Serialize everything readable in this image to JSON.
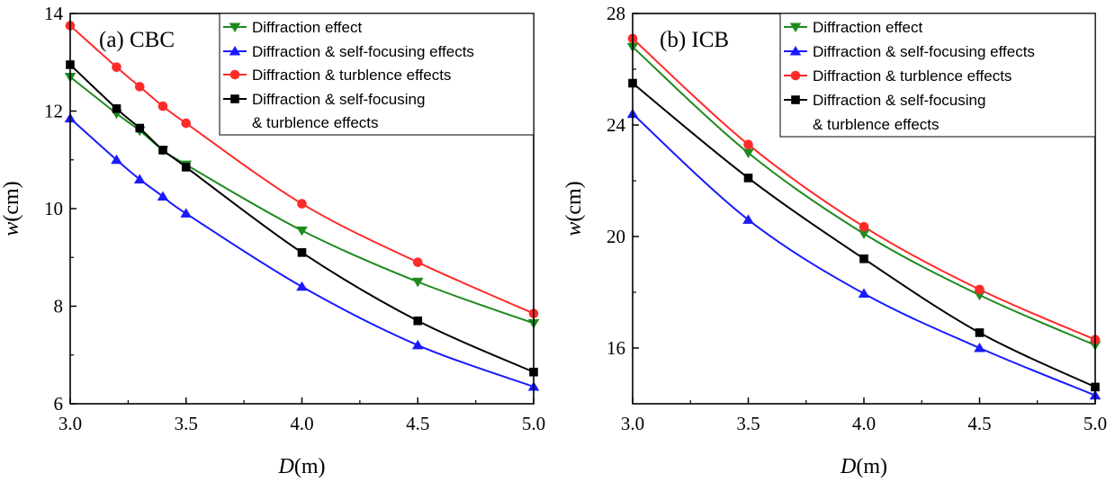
{
  "chart_data": [
    {
      "type": "line",
      "title": "(a) CBC",
      "xlabel_italic": "D",
      "xlabel_unit": "(m)",
      "ylabel_italic": "w",
      "ylabel_unit": "(cm)",
      "xlim": [
        3.0,
        5.0
      ],
      "ylim": [
        6,
        14
      ],
      "xticks": [
        3.0,
        3.5,
        4.0,
        4.5,
        5.0
      ],
      "xtick_labels": [
        "3.0",
        "3.5",
        "4.0",
        "4.5",
        "5.0"
      ],
      "yticks": [
        6,
        8,
        10,
        12,
        14
      ],
      "ytick_labels": [
        "6",
        "8",
        "10",
        "12",
        "14"
      ],
      "legend_position": "top-right",
      "grid": false,
      "series": [
        {
          "name": "Diffraction effect",
          "color": "#1f8a1f",
          "marker": "triangle-down",
          "x": [
            3.0,
            3.2,
            3.3,
            3.4,
            3.5,
            4.0,
            4.5,
            5.0
          ],
          "y": [
            12.7,
            11.95,
            11.6,
            11.2,
            10.9,
            9.55,
            8.5,
            7.65
          ]
        },
        {
          "name": "Diffraction & self-focusing effects",
          "color": "#1a1aff",
          "marker": "triangle-up",
          "x": [
            3.0,
            3.2,
            3.3,
            3.4,
            3.5,
            4.0,
            4.5,
            5.0
          ],
          "y": [
            11.85,
            11.0,
            10.6,
            10.25,
            9.9,
            8.4,
            7.2,
            6.35
          ]
        },
        {
          "name": "Diffraction & turblence effects",
          "color": "#ff2a2a",
          "marker": "circle",
          "x": [
            3.0,
            3.2,
            3.3,
            3.4,
            3.5,
            4.0,
            4.5,
            5.0
          ],
          "y": [
            13.75,
            12.9,
            12.5,
            12.1,
            11.75,
            10.1,
            8.9,
            7.85
          ]
        },
        {
          "name": "Diffraction & self-focusing & turblence effects",
          "color": "#000000",
          "marker": "square",
          "legend_lines": [
            "Diffraction & self-focusing",
            "& turblence effects"
          ],
          "x": [
            3.0,
            3.2,
            3.3,
            3.4,
            3.5,
            4.0,
            4.5,
            5.0
          ],
          "y": [
            12.95,
            12.05,
            11.65,
            11.2,
            10.85,
            9.1,
            7.7,
            6.65
          ]
        }
      ]
    },
    {
      "type": "line",
      "title": "(b) ICB",
      "xlabel_italic": "D",
      "xlabel_unit": "(m)",
      "ylabel_italic": "w",
      "ylabel_unit": "(cm)",
      "xlim": [
        3.0,
        5.0
      ],
      "ylim": [
        14,
        28
      ],
      "xticks": [
        3.0,
        3.5,
        4.0,
        4.5,
        5.0
      ],
      "xtick_labels": [
        "3.0",
        "3.5",
        "4.0",
        "4.5",
        "5.0"
      ],
      "yticks": [
        16,
        20,
        24,
        28
      ],
      "ytick_labels": [
        "16",
        "20",
        "24",
        "28"
      ],
      "legend_position": "top-right",
      "grid": false,
      "series": [
        {
          "name": "Diffraction effect",
          "color": "#1f8a1f",
          "marker": "triangle-down",
          "x": [
            3.0,
            3.5,
            4.0,
            4.5,
            5.0
          ],
          "y": [
            26.8,
            23.0,
            20.1,
            17.9,
            16.1
          ]
        },
        {
          "name": "Diffraction & self-focusing effects",
          "color": "#1a1aff",
          "marker": "triangle-up",
          "x": [
            3.0,
            3.5,
            4.0,
            4.5,
            5.0
          ],
          "y": [
            24.4,
            20.6,
            17.95,
            16.0,
            14.3
          ]
        },
        {
          "name": "Diffraction & turblence effects",
          "color": "#ff2a2a",
          "marker": "circle",
          "x": [
            3.0,
            3.5,
            4.0,
            4.5,
            5.0
          ],
          "y": [
            27.1,
            23.3,
            20.35,
            18.1,
            16.3
          ]
        },
        {
          "name": "Diffraction & self-focusing & turblence effects",
          "color": "#000000",
          "marker": "square",
          "legend_lines": [
            "Diffraction & self-focusing",
            "& turblence effects"
          ],
          "x": [
            3.0,
            3.5,
            4.0,
            4.5,
            5.0
          ],
          "y": [
            25.5,
            22.1,
            19.2,
            16.55,
            14.6
          ]
        }
      ]
    }
  ]
}
